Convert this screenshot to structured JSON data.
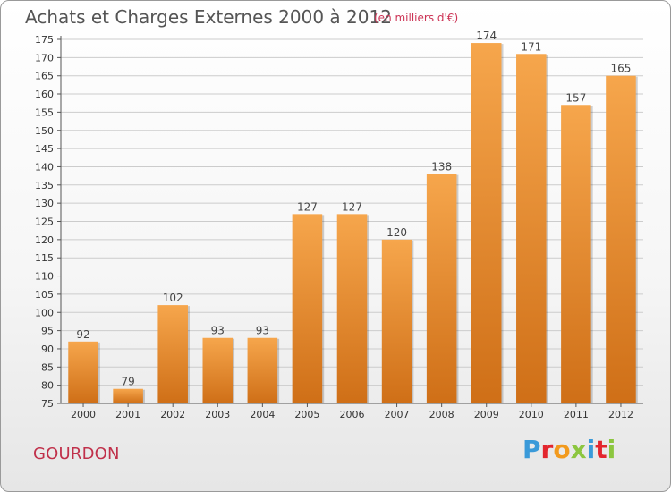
{
  "header": {
    "title": "Achats et Charges Externes 2000 à 2012",
    "subtitle": "(en milliers d'€)"
  },
  "footer": {
    "commune": "GOURDON",
    "logo_letters": [
      "P",
      "r",
      "o",
      "x",
      "i",
      "t",
      "i"
    ]
  },
  "colors": {
    "bar_light": "#f6a64c",
    "bar_dark": "#cf6f17",
    "grid": "#cccccc",
    "axis": "#555555"
  },
  "chart_data": {
    "type": "bar",
    "title": "Achats et Charges Externes 2000 à 2012",
    "xlabel": "",
    "ylabel": "",
    "categories": [
      "2000",
      "2001",
      "2002",
      "2003",
      "2004",
      "2005",
      "2006",
      "2007",
      "2008",
      "2009",
      "2010",
      "2011",
      "2012"
    ],
    "values": [
      92,
      79,
      102,
      93,
      93,
      127,
      127,
      120,
      138,
      174,
      171,
      157,
      165
    ],
    "ylim": [
      75,
      175
    ],
    "yticks": [
      75,
      80,
      85,
      90,
      95,
      100,
      105,
      110,
      115,
      120,
      125,
      130,
      135,
      140,
      145,
      150,
      155,
      160,
      165,
      170,
      175
    ],
    "grid": true
  }
}
